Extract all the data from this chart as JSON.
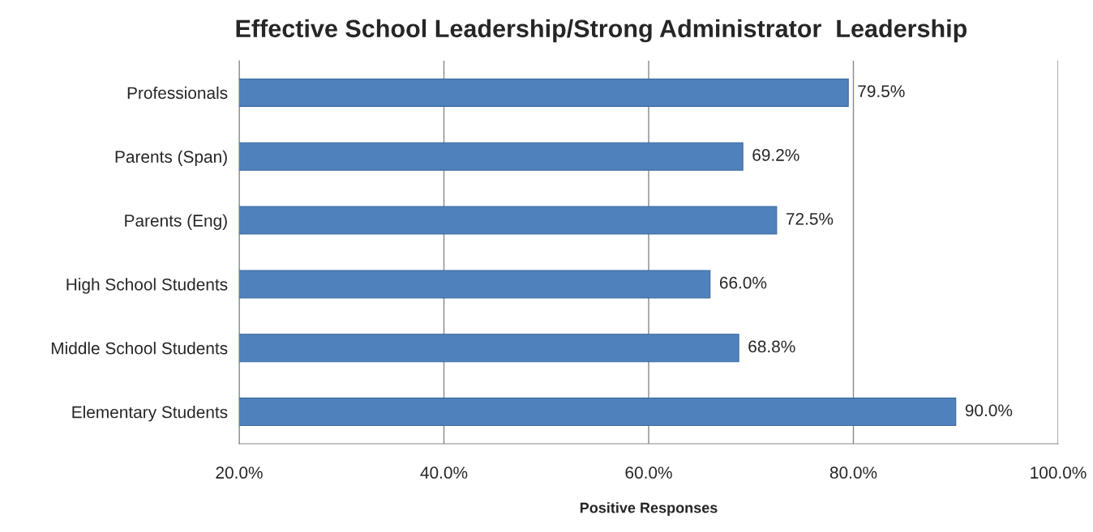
{
  "chart_data": {
    "type": "bar",
    "orientation": "horizontal",
    "title": "Effective School Leadership/Strong Administrator  Leadership",
    "xlabel": "Positive Responses",
    "categories": [
      "Professionals",
      "Parents (Span)",
      "Parents (Eng)",
      "High School Students",
      "Middle School Students",
      "Elementary Students"
    ],
    "values": [
      79.5,
      69.2,
      72.5,
      66.0,
      68.8,
      90.0
    ],
    "value_labels": [
      "79.5%",
      "69.2%",
      "72.5%",
      "66.0%",
      "68.8%",
      "90.0%"
    ],
    "color": "#4f81bd",
    "xlim": [
      20,
      100
    ],
    "xticks": [
      {
        "value": 20,
        "label": "20.0%"
      },
      {
        "value": 40,
        "label": "40.0%"
      },
      {
        "value": 60,
        "label": "60.0%"
      },
      {
        "value": 80,
        "label": "80.0%"
      },
      {
        "value": 100,
        "label": "100.0%"
      }
    ],
    "grid": "x",
    "legend": false
  }
}
